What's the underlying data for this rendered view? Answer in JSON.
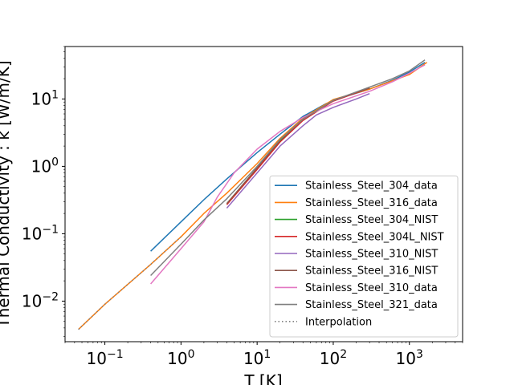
{
  "chart_data": {
    "type": "line",
    "title": "",
    "xlabel": "T [K]",
    "ylabel": "Thermal Conductivity : k [W/m/K]",
    "xscale": "log",
    "yscale": "log",
    "xlim": [
      0.03,
      5000
    ],
    "ylim": [
      0.0025,
      60
    ],
    "x_ticks": [
      {
        "base": "10",
        "exp": "−1",
        "value": 0.1
      },
      {
        "base": "10",
        "exp": "0",
        "value": 1
      },
      {
        "base": "10",
        "exp": "1",
        "value": 10
      },
      {
        "base": "10",
        "exp": "2",
        "value": 100
      },
      {
        "base": "10",
        "exp": "3",
        "value": 1000
      }
    ],
    "y_ticks": [
      {
        "base": "10",
        "exp": "−2",
        "value": 0.01
      },
      {
        "base": "10",
        "exp": "−1",
        "value": 0.1
      },
      {
        "base": "10",
        "exp": "0",
        "value": 1
      },
      {
        "base": "10",
        "exp": "1",
        "value": 10
      }
    ],
    "grid": false,
    "legend_position": "lower-right",
    "series": [
      {
        "name": "Stainless_Steel_304_data",
        "color": "#1f77b4",
        "dash": "solid",
        "x": [
          0.4,
          1,
          2,
          4,
          10,
          20,
          40,
          80,
          150,
          300,
          600,
          1000,
          1600
        ],
        "y": [
          0.055,
          0.15,
          0.32,
          0.65,
          1.6,
          3.0,
          5.5,
          8.5,
          11,
          14,
          19,
          25,
          35
        ]
      },
      {
        "name": "Stainless_Steel_316_data",
        "color": "#ff7f0e",
        "dash": "solid",
        "x": [
          0.045,
          0.1,
          0.4,
          1,
          2,
          4,
          10,
          20,
          40,
          100,
          300,
          1000,
          1700
        ],
        "y": [
          0.0038,
          0.009,
          0.035,
          0.09,
          0.2,
          0.4,
          1.1,
          2.6,
          5.2,
          9.8,
          14,
          23,
          35
        ]
      },
      {
        "name": "Stainless_Steel_304_NIST",
        "color": "#2ca02c",
        "dash": "solid",
        "x": [
          4,
          10,
          20,
          40,
          100,
          200,
          300
        ],
        "y": [
          0.28,
          0.95,
          2.4,
          5.0,
          9.5,
          12.5,
          14.8
        ]
      },
      {
        "name": "Stainless_Steel_304L_NIST",
        "color": "#d62728",
        "dash": "solid",
        "x": [
          4,
          10,
          20,
          40,
          100,
          200,
          300
        ],
        "y": [
          0.27,
          0.9,
          2.3,
          4.8,
          9.3,
          12.3,
          14.5
        ]
      },
      {
        "name": "Stainless_Steel_310_NIST",
        "color": "#9467bd",
        "dash": "solid",
        "x": [
          4,
          10,
          20,
          40,
          60,
          100,
          200,
          300
        ],
        "y": [
          0.24,
          0.8,
          2.0,
          4.0,
          5.8,
          7.5,
          10,
          12
        ]
      },
      {
        "name": "Stainless_Steel_316_NIST",
        "color": "#8c564b",
        "dash": "solid",
        "x": [
          4,
          10,
          20,
          40,
          100,
          200,
          300
        ],
        "y": [
          0.28,
          0.95,
          2.5,
          5.0,
          9.5,
          12.5,
          14.5
        ]
      },
      {
        "name": "Stainless_Steel_310_data",
        "color": "#e377c2",
        "dash": "solid",
        "x": [
          0.4,
          1,
          2,
          3,
          5,
          10,
          20,
          40,
          100,
          300,
          600,
          1000,
          1600
        ],
        "y": [
          0.018,
          0.06,
          0.15,
          0.35,
          0.8,
          1.8,
          3.3,
          5.3,
          8.5,
          13,
          18,
          24,
          32
        ]
      },
      {
        "name": "Stainless_Steel_321_data",
        "color": "#7f7f7f",
        "dash": "solid",
        "x": [
          0.4,
          1,
          2,
          4,
          10,
          20,
          40,
          100,
          300,
          600,
          1000,
          1600
        ],
        "y": [
          0.024,
          0.07,
          0.16,
          0.33,
          1.0,
          2.5,
          5.0,
          9.5,
          15,
          20,
          26,
          38
        ]
      },
      {
        "name": "Interpolation",
        "color": "#7f7f7f",
        "dash": "dotted",
        "x": [
          0.045,
          0.1,
          0.4,
          1
        ],
        "y": [
          0.0038,
          0.009,
          0.035,
          0.09
        ]
      }
    ]
  }
}
